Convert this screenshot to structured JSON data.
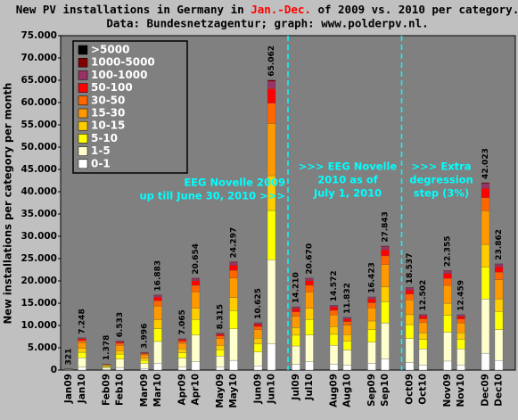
{
  "chart_data": {
    "type": "stacked-bar",
    "title": [
      "New PV installations in Germany in ",
      "Jan.-Dec.",
      " of 2009 vs. 2010 per category."
    ],
    "title_highlight_color": "#ff0000",
    "subtitle": "Data: Bundesnetzagentur; graph: www.polderpv.nl.",
    "ylabel": "New installations per category per month",
    "categories": [
      "Jan09",
      "Jan10",
      "Feb09",
      "Feb10",
      "Mar09",
      "Mar10",
      "Apr09",
      "Apr10",
      "May09",
      "May10",
      "Jun09",
      "Jun10",
      "Jul09",
      "Jul10",
      "Aug09",
      "Aug10",
      "Sep09",
      "Sep10",
      "Oct09",
      "Oct10",
      "Nov09",
      "Nov10",
      "Dec09",
      "Dec10"
    ],
    "ylim": [
      0,
      75000
    ],
    "yticks": [
      0,
      {
        "value": 5000,
        "label": "5.000"
      },
      {
        "value": 10000,
        "label": "10.000"
      },
      {
        "value": 15000,
        "label": "15.000"
      },
      {
        "value": 20000,
        "label": "20.000"
      },
      {
        "value": 25000,
        "label": "25.000"
      },
      {
        "value": 30000,
        "label": "30.000"
      },
      {
        "value": 35000,
        "label": "35.000"
      },
      {
        "value": 40000,
        "label": "40.000"
      },
      {
        "value": 45000,
        "label": "45.000"
      },
      {
        "value": 50000,
        "label": "50.000"
      },
      {
        "value": 55000,
        "label": "55.000"
      },
      {
        "value": 60000,
        "label": "60.000"
      },
      {
        "value": 65000,
        "label": "65.000"
      },
      {
        "value": 70000,
        "label": "70.000"
      },
      {
        "value": 75000,
        "label": "75.000"
      }
    ],
    "legend": "upper left",
    "series": [
      {
        "name": "0-1",
        "color": "#ffffff",
        "values": [
          29,
          652,
          124,
          588,
          360,
          1519,
          636,
          1859,
          748,
          2187,
          956,
          5856,
          1279,
          1860,
          1311,
          1065,
          1478,
          2506,
          1668,
          1125,
          2012,
          1121,
          3782,
          2148
        ]
      },
      {
        "name": "1-5",
        "color": "#ffffcc",
        "values": [
          93,
          2102,
          400,
          1895,
          1159,
          4896,
          2049,
          5990,
          2411,
          7046,
          3081,
          18868,
          4121,
          5994,
          4226,
          3431,
          4763,
          8074,
          5376,
          3626,
          6483,
          3613,
          12187,
          6920
        ]
      },
      {
        "name": "5-10",
        "color": "#ffff00",
        "values": [
          55,
          1232,
          234,
          1111,
          679,
          2870,
          1201,
          3511,
          1414,
          4130,
          1806,
          11061,
          2416,
          3514,
          2477,
          2011,
          2792,
          4733,
          3151,
          2125,
          3800,
          2118,
          7144,
          4057
        ]
      },
      {
        "name": "10-15",
        "color": "#ffcc00",
        "values": [
          39,
          870,
          165,
          784,
          480,
          2026,
          848,
          2478,
          998,
          2916,
          1275,
          7807,
          1705,
          2480,
          1749,
          1420,
          1971,
          3341,
          2224,
          1500,
          2683,
          1495,
          5043,
          2863
        ]
      },
      {
        "name": "15-30",
        "color": "#ff9900",
        "values": [
          58,
          1305,
          248,
          1176,
          719,
          3039,
          1272,
          3718,
          1497,
          4373,
          1913,
          11711,
          2558,
          3721,
          2623,
          2130,
          2956,
          5012,
          3337,
          2250,
          4024,
          2243,
          7564,
          4295
        ]
      },
      {
        "name": "30-50",
        "color": "#ff6600",
        "values": [
          22,
          507,
          96,
          457,
          280,
          1182,
          495,
          1446,
          582,
          1701,
          744,
          4554,
          995,
          1447,
          1020,
          828,
          1150,
          1949,
          1298,
          875,
          1565,
          872,
          2942,
          1670
        ]
      },
      {
        "name": "50-100",
        "color": "#ff0000",
        "values": [
          16,
          362,
          69,
          327,
          200,
          844,
          353,
          1033,
          416,
          1215,
          531,
          3253,
          711,
          1034,
          729,
          592,
          821,
          1392,
          927,
          625,
          1118,
          623,
          2101,
          1193
        ]
      },
      {
        "name": "100-1000",
        "color": "#993366",
        "values": [
          8,
          181,
          34,
          163,
          100,
          422,
          177,
          516,
          208,
          607,
          266,
          1627,
          355,
          517,
          364,
          296,
          411,
          696,
          463,
          313,
          559,
          311,
          1051,
          597
        ]
      },
      {
        "name": "1000-5000",
        "color": "#800000",
        "values": [
          1,
          37,
          8,
          32,
          19,
          85,
          34,
          103,
          41,
          122,
          53,
          325,
          70,
          103,
          73,
          59,
          81,
          140,
          93,
          63,
          111,
          63,
          209,
          119
        ]
      },
      {
        "name": ">5000",
        "color": "#000000",
        "values": [
          0,
          0,
          0,
          0,
          0,
          0,
          0,
          0,
          0,
          0,
          0,
          0,
          0,
          0,
          0,
          0,
          0,
          0,
          0,
          0,
          0,
          0,
          0,
          0
        ]
      }
    ],
    "totals": {
      "values": [
        321,
        7248,
        1378,
        6533,
        3996,
        16883,
        7065,
        20654,
        8315,
        24297,
        10625,
        65062,
        14210,
        20670,
        14572,
        11832,
        16423,
        27843,
        18537,
        12502,
        22355,
        12459,
        42023,
        23862
      ],
      "value_labels": [
        "321",
        "7.248",
        "1.378",
        "6.533",
        "3.996",
        "16.883",
        "7.065",
        "20.654",
        "8.315",
        "24.297",
        "10.625",
        "65.062",
        "14.210",
        "20.670",
        "14.572",
        "11.832",
        "16.423",
        "27.843",
        "18.537",
        "12.502",
        "22.355",
        "12.459",
        "42.023",
        "23.862"
      ]
    },
    "annotations": [
      {
        "lines": [
          "EEG Novelle 2009",
          "up till June 30, 2010 >>>"
        ],
        "color": "#00ffff"
      },
      {
        "lines": [
          ">>> EEG Novelle",
          "2010 as of",
          "July 1, 2010"
        ],
        "color": "#00ffff"
      },
      {
        "lines": [
          ">>> Extra",
          "degression",
          "step (3%)"
        ],
        "color": "#00ffff"
      }
    ]
  }
}
